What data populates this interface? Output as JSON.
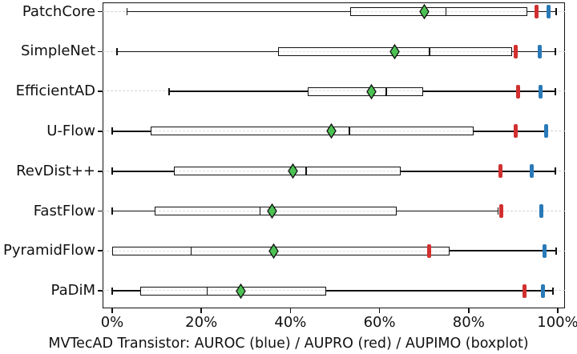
{
  "colors": {
    "auroc_blue": "#2a7ab8",
    "aupro_red": "#d23030",
    "mean_green": "#4cc153",
    "grid_gray": "#d4d4d4",
    "axis_black": "#111111"
  },
  "chart_data": {
    "type": "boxplot",
    "orientation": "horizontal",
    "unit": "percent",
    "xlabel": "MVTecAD Transistor: AUROC (blue) / AUPRO (red) / AUPIMO (boxplot)",
    "xlim": [
      0,
      100
    ],
    "grid": "dashed horizontal line per row",
    "legend_note": "AUROC = blue tick, AUPRO = red tick, AUPIMO distribution = boxplot with green diamond mean",
    "xticks": [
      {
        "value": 0,
        "label": "0%"
      },
      {
        "value": 20,
        "label": "20%"
      },
      {
        "value": 40,
        "label": "40%"
      },
      {
        "value": 60,
        "label": "60%"
      },
      {
        "value": 80,
        "label": "80%"
      },
      {
        "value": 100,
        "label": "100%"
      }
    ],
    "rows": [
      {
        "model": "PatchCore",
        "aupimo_box": {
          "whisker_lo": 3.3,
          "q1": 53.4,
          "median": 74.9,
          "q3": 93.2,
          "whisker_hi": 99.6,
          "mean": 70.0
        },
        "aupro": 95.2,
        "auroc": 98.0
      },
      {
        "model": "SimpleNet",
        "aupimo_box": {
          "whisker_lo": 1.1,
          "q1": 37.2,
          "median": 71.2,
          "q3": 89.7,
          "whisker_hi": 99.4,
          "mean": 63.4
        },
        "aupro": 90.6,
        "auroc": 95.9
      },
      {
        "model": "EfficientAD",
        "aupimo_box": {
          "whisker_lo": 12.8,
          "q1": 43.8,
          "median": 61.5,
          "q3": 69.8,
          "whisker_hi": 99.4,
          "mean": 58.1
        },
        "aupro": 91.1,
        "auroc": 96.1
      },
      {
        "model": "U-Flow",
        "aupimo_box": {
          "whisker_lo": 0.0,
          "q1": 8.7,
          "median": 53.2,
          "q3": 81.1,
          "whisker_hi": 97.6,
          "mean": 49.2
        },
        "aupro": 90.5,
        "auroc": 97.4
      },
      {
        "model": "RevDist++",
        "aupimo_box": {
          "whisker_lo": 0.0,
          "q1": 13.9,
          "median": 43.5,
          "q3": 64.7,
          "whisker_hi": 99.4,
          "mean": 40.5
        },
        "aupro": 87.1,
        "auroc": 94.2
      },
      {
        "model": "FastFlow",
        "aupimo_box": {
          "whisker_lo": 0.0,
          "q1": 9.6,
          "median": 33.2,
          "q3": 63.8,
          "whisker_hi": 86.6,
          "mean": 35.8
        },
        "aupro": 87.4,
        "auroc": 96.4
      },
      {
        "model": "PyramidFlow",
        "aupimo_box": {
          "whisker_lo": 0.0,
          "q1": 0.0,
          "median": 17.7,
          "q3": 75.8,
          "whisker_hi": 99.6,
          "mean": 36.3
        },
        "aupro": 71.2,
        "auroc": 97.0
      },
      {
        "model": "PaDiM",
        "aupimo_box": {
          "whisker_lo": 0.0,
          "q1": 6.3,
          "median": 21.3,
          "q3": 48.0,
          "whisker_hi": 98.9,
          "mean": 28.9
        },
        "aupro": 92.5,
        "auroc": 96.6
      }
    ]
  }
}
